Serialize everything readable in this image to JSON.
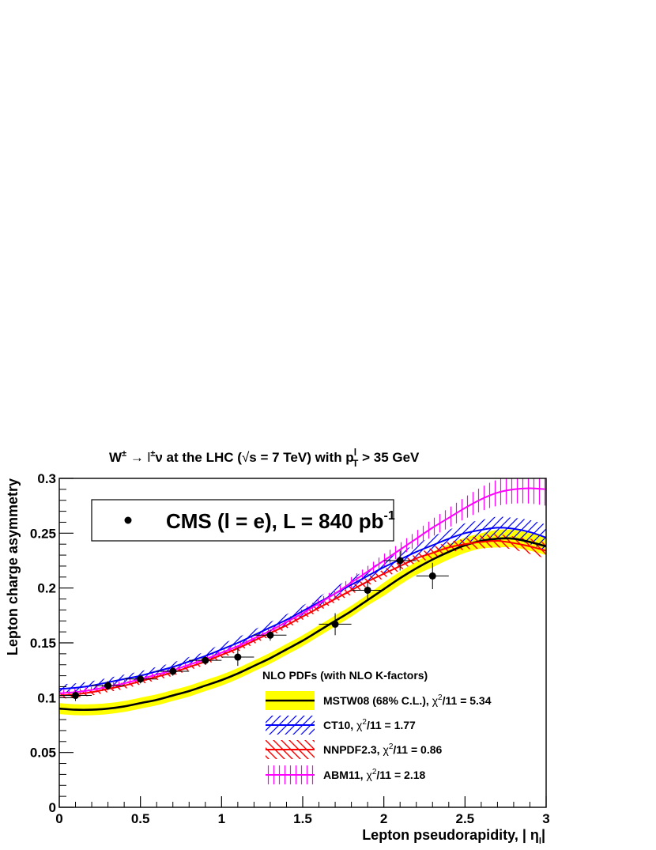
{
  "chart_data": {
    "type": "line",
    "title_main": "W",
    "title_sup1": "±",
    "title_arrow": " → l",
    "title_sup2": "±",
    "title_rest": "ν at the LHC (",
    "title_sqrt": "√",
    "title_rest2": "s = 7 TeV) with p",
    "title_sub": "T",
    "title_supl": "l",
    "title_end": " > 35 GeV",
    "xlabel": "Lepton pseudorapidity, | η",
    "xlabel_sub": "l",
    "xlabel_end": "|",
    "ylabel": "Lepton charge asymmetry",
    "xlim": [
      0,
      3
    ],
    "ylim": [
      0,
      0.3
    ],
    "x_ticks": [
      "0",
      "0.5",
      "1",
      "1.5",
      "2",
      "2.5",
      "3"
    ],
    "y_ticks": [
      "0",
      "0.05",
      "0.1",
      "0.15",
      "0.2",
      "0.25",
      "0.3"
    ],
    "data_label": "CMS (l = e), L = 840 pb",
    "data_label_sup": "-1",
    "legend_header": "NLO PDFs (with NLO K-factors)",
    "data": {
      "x": [
        0.1,
        0.3,
        0.5,
        0.7,
        0.9,
        1.1,
        1.3,
        1.7,
        1.9,
        2.1,
        2.3
      ],
      "xerr": [
        0.1,
        0.1,
        0.1,
        0.1,
        0.1,
        0.1,
        0.1,
        0.1,
        0.1,
        0.1,
        0.1
      ],
      "y": [
        0.102,
        0.111,
        0.117,
        0.124,
        0.134,
        0.137,
        0.157,
        0.167,
        0.198,
        0.225,
        0.211
      ],
      "yerr": [
        0.005,
        0.004,
        0.004,
        0.004,
        0.004,
        0.008,
        0.005,
        0.01,
        0.008,
        0.009,
        0.012
      ]
    },
    "series": [
      {
        "name": "MSTW08 (68% C.L.),",
        "chi_label": "χ",
        "chi_sup": "2",
        "chi_text": "/11 = 5.34",
        "color": "#000000",
        "band_color": "#ffff00",
        "x": [
          0,
          0.1,
          0.2,
          0.3,
          0.4,
          0.5,
          0.6,
          0.7,
          0.8,
          0.9,
          1.0,
          1.1,
          1.2,
          1.3,
          1.4,
          1.5,
          1.6,
          1.7,
          1.8,
          1.9,
          2.0,
          2.1,
          2.2,
          2.3,
          2.4,
          2.5,
          2.6,
          2.7,
          2.8,
          2.9,
          3.0
        ],
        "y": [
          0.09,
          0.089,
          0.089,
          0.09,
          0.092,
          0.095,
          0.098,
          0.102,
          0.106,
          0.111,
          0.116,
          0.122,
          0.129,
          0.136,
          0.144,
          0.152,
          0.161,
          0.17,
          0.179,
          0.189,
          0.199,
          0.209,
          0.218,
          0.226,
          0.233,
          0.239,
          0.243,
          0.245,
          0.245,
          0.242,
          0.238
        ],
        "band": [
          0.005,
          0.005,
          0.005,
          0.005,
          0.005,
          0.005,
          0.005,
          0.005,
          0.005,
          0.005,
          0.005,
          0.005,
          0.005,
          0.005,
          0.005,
          0.005,
          0.005,
          0.005,
          0.005,
          0.005,
          0.006,
          0.006,
          0.006,
          0.007,
          0.007,
          0.007,
          0.007,
          0.008,
          0.008,
          0.008,
          0.008
        ]
      },
      {
        "name": "CT10,",
        "chi_label": "χ",
        "chi_sup": "2",
        "chi_text": "/11 = 1.77",
        "color": "#0000ff",
        "x": [
          0,
          0.1,
          0.2,
          0.3,
          0.4,
          0.5,
          0.6,
          0.7,
          0.8,
          0.9,
          1.0,
          1.1,
          1.2,
          1.3,
          1.4,
          1.5,
          1.6,
          1.7,
          1.8,
          1.9,
          2.0,
          2.1,
          2.2,
          2.3,
          2.4,
          2.5,
          2.6,
          2.7,
          2.8,
          2.9,
          3.0
        ],
        "y": [
          0.108,
          0.109,
          0.111,
          0.114,
          0.117,
          0.12,
          0.124,
          0.128,
          0.133,
          0.138,
          0.144,
          0.15,
          0.157,
          0.164,
          0.171,
          0.179,
          0.187,
          0.195,
          0.203,
          0.211,
          0.219,
          0.226,
          0.233,
          0.239,
          0.245,
          0.25,
          0.253,
          0.255,
          0.254,
          0.251,
          0.246
        ],
        "band": [
          0.004,
          0.004,
          0.004,
          0.004,
          0.004,
          0.004,
          0.004,
          0.004,
          0.004,
          0.004,
          0.005,
          0.005,
          0.005,
          0.005,
          0.005,
          0.005,
          0.005,
          0.006,
          0.006,
          0.006,
          0.006,
          0.007,
          0.007,
          0.008,
          0.008,
          0.009,
          0.009,
          0.01,
          0.01,
          0.011,
          0.012
        ]
      },
      {
        "name": "NNPDF2.3,",
        "chi_label": "χ",
        "chi_sup": "2",
        "chi_text": "/11 = 0.86",
        "color": "#ff0000",
        "x": [
          0,
          0.1,
          0.2,
          0.3,
          0.4,
          0.5,
          0.6,
          0.7,
          0.8,
          0.9,
          1.0,
          1.1,
          1.2,
          1.3,
          1.4,
          1.5,
          1.6,
          1.7,
          1.8,
          1.9,
          2.0,
          2.1,
          2.2,
          2.3,
          2.4,
          2.5,
          2.6,
          2.7,
          2.8,
          2.9,
          3.0
        ],
        "y": [
          0.102,
          0.103,
          0.105,
          0.108,
          0.111,
          0.115,
          0.119,
          0.123,
          0.128,
          0.133,
          0.139,
          0.145,
          0.152,
          0.159,
          0.166,
          0.174,
          0.182,
          0.19,
          0.198,
          0.206,
          0.213,
          0.22,
          0.227,
          0.232,
          0.237,
          0.24,
          0.242,
          0.243,
          0.241,
          0.238,
          0.234
        ],
        "band": [
          0.003,
          0.003,
          0.003,
          0.003,
          0.003,
          0.003,
          0.003,
          0.003,
          0.003,
          0.003,
          0.003,
          0.003,
          0.003,
          0.003,
          0.003,
          0.003,
          0.003,
          0.003,
          0.004,
          0.004,
          0.004,
          0.004,
          0.004,
          0.005,
          0.005,
          0.005,
          0.006,
          0.006,
          0.006,
          0.007,
          0.007
        ]
      },
      {
        "name": "ABM11,",
        "chi_label": "χ",
        "chi_sup": "2",
        "chi_text": "/11 = 2.18",
        "color": "#ff00ff",
        "x": [
          0,
          0.1,
          0.2,
          0.3,
          0.4,
          0.5,
          0.6,
          0.7,
          0.8,
          0.9,
          1.0,
          1.1,
          1.2,
          1.3,
          1.4,
          1.5,
          1.6,
          1.7,
          1.8,
          1.9,
          2.0,
          2.1,
          2.2,
          2.3,
          2.4,
          2.5,
          2.6,
          2.7,
          2.8,
          2.9,
          3.0
        ],
        "y": [
          0.104,
          0.105,
          0.107,
          0.11,
          0.113,
          0.117,
          0.121,
          0.125,
          0.13,
          0.135,
          0.141,
          0.147,
          0.154,
          0.161,
          0.169,
          0.177,
          0.186,
          0.195,
          0.205,
          0.215,
          0.225,
          0.235,
          0.245,
          0.255,
          0.264,
          0.273,
          0.281,
          0.287,
          0.29,
          0.291,
          0.29
        ],
        "band": [
          0.003,
          0.003,
          0.003,
          0.003,
          0.003,
          0.003,
          0.003,
          0.003,
          0.003,
          0.003,
          0.003,
          0.003,
          0.003,
          0.003,
          0.003,
          0.004,
          0.004,
          0.004,
          0.005,
          0.005,
          0.006,
          0.006,
          0.007,
          0.008,
          0.009,
          0.01,
          0.011,
          0.012,
          0.013,
          0.014,
          0.015
        ]
      }
    ],
    "grid": false,
    "legend_position": "bottom-right"
  }
}
